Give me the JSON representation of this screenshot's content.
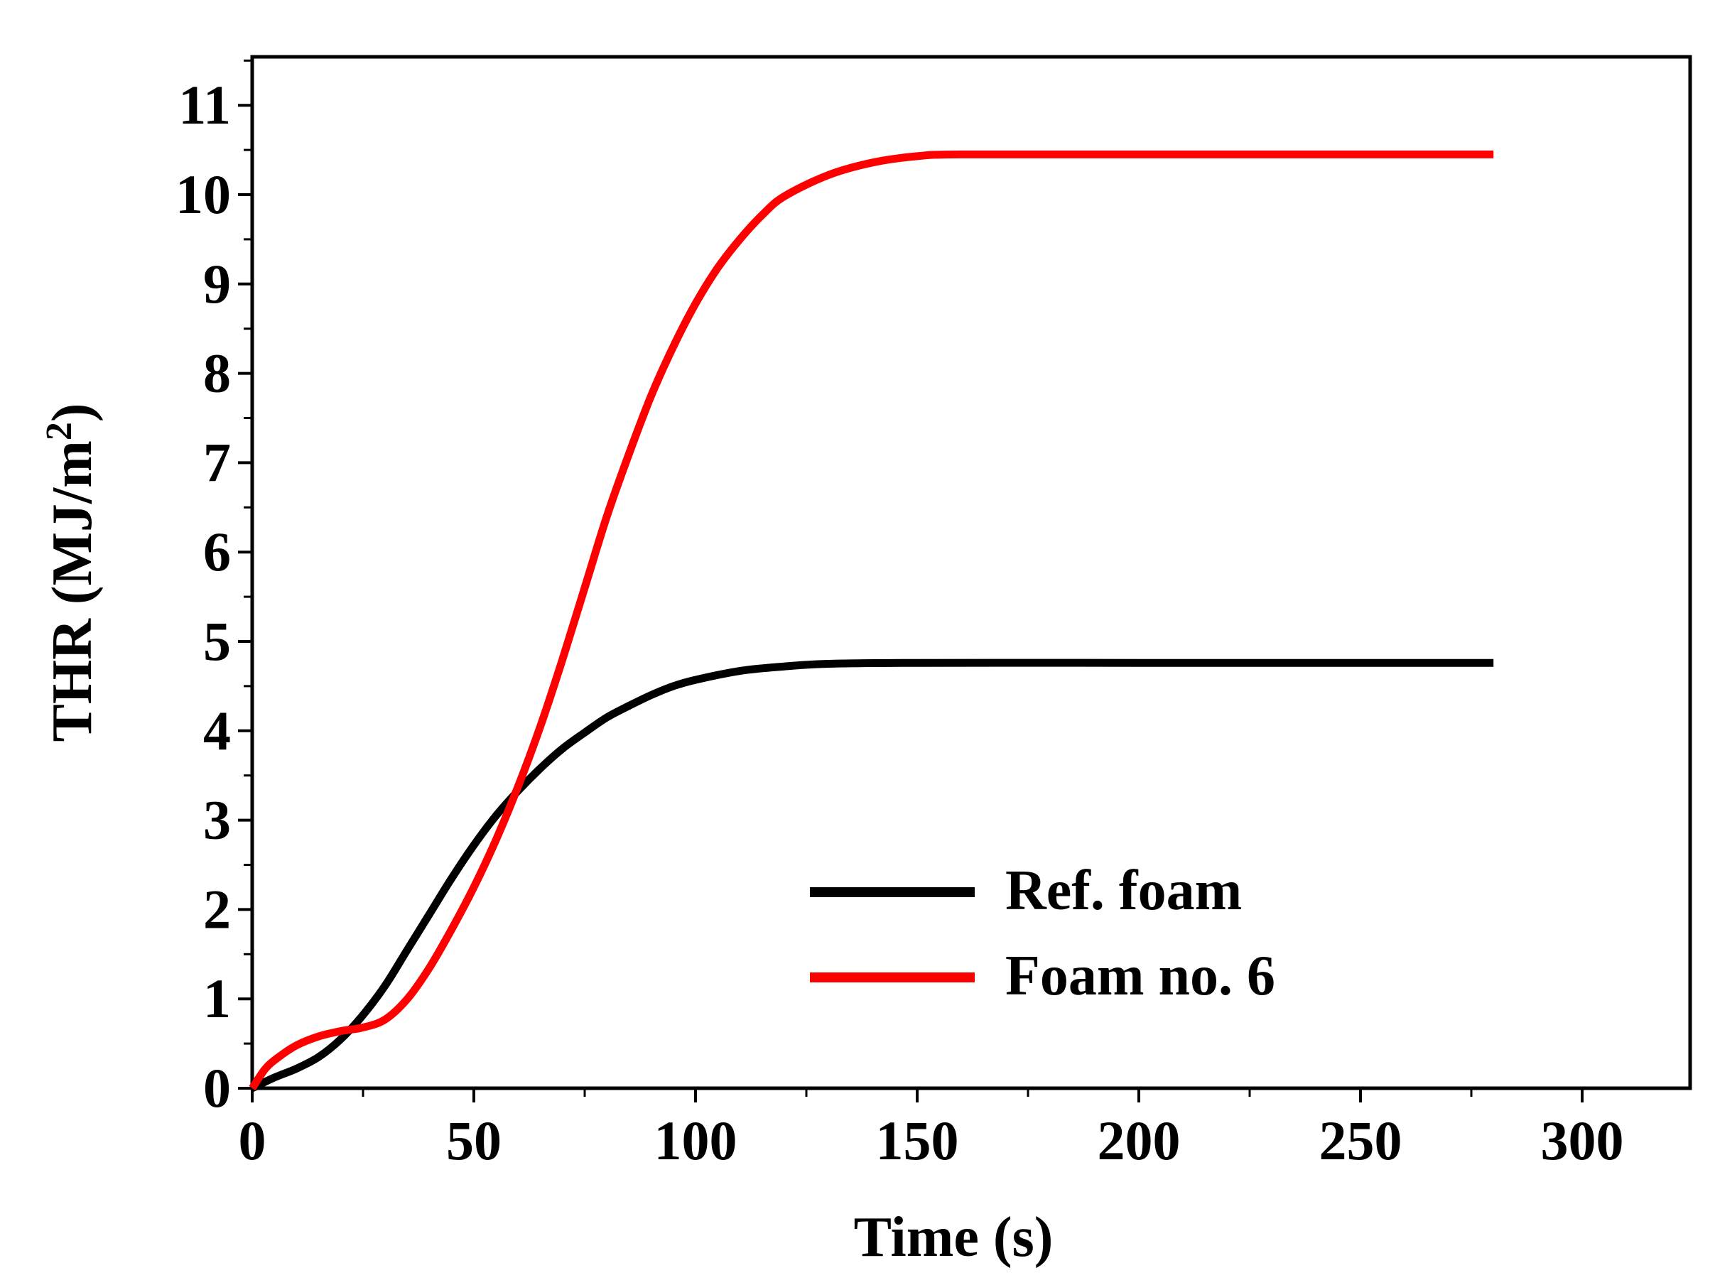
{
  "chart_data": {
    "type": "line",
    "title": "",
    "xlabel": "Time (s)",
    "ylabel_main": "THR (MJ/m",
    "ylabel_sup": "2",
    "ylabel_close": ")",
    "xlim": [
      0,
      325
    ],
    "ylim": [
      0,
      11.5
    ],
    "xticks": [
      0,
      50,
      100,
      150,
      200,
      250,
      300
    ],
    "xtick_labels": [
      "0",
      "50",
      "100",
      "150",
      "200",
      "250",
      "300"
    ],
    "yticks": [
      0,
      1,
      2,
      3,
      4,
      5,
      6,
      7,
      8,
      9,
      10,
      11
    ],
    "ytick_labels": [
      "0",
      "1",
      "2",
      "3",
      "4",
      "5",
      "6",
      "7",
      "8",
      "9",
      "10",
      "11"
    ],
    "grid": false,
    "legend_position": "bottom-right",
    "series": [
      {
        "name": "Ref. foam",
        "color": "#000000",
        "x": [
          0,
          5,
          10,
          15,
          20,
          25,
          30,
          35,
          40,
          45,
          50,
          55,
          60,
          65,
          70,
          75,
          80,
          85,
          90,
          95,
          100,
          110,
          120,
          130,
          150,
          200,
          250,
          280
        ],
        "y": [
          0,
          0.12,
          0.22,
          0.35,
          0.55,
          0.82,
          1.15,
          1.55,
          1.95,
          2.35,
          2.72,
          3.05,
          3.33,
          3.58,
          3.8,
          3.98,
          4.15,
          4.28,
          4.4,
          4.5,
          4.57,
          4.67,
          4.72,
          4.75,
          4.76,
          4.76,
          4.76,
          4.76
        ]
      },
      {
        "name": "Foam no. 6",
        "color": "#ff0000",
        "x": [
          0,
          3,
          6,
          10,
          15,
          20,
          25,
          30,
          35,
          40,
          45,
          50,
          55,
          60,
          65,
          70,
          75,
          80,
          85,
          90,
          95,
          100,
          105,
          110,
          115,
          120,
          130,
          140,
          150,
          160,
          200,
          250,
          280
        ],
        "y": [
          0,
          0.22,
          0.35,
          0.48,
          0.58,
          0.64,
          0.68,
          0.77,
          1.0,
          1.35,
          1.78,
          2.25,
          2.78,
          3.38,
          4.05,
          4.8,
          5.6,
          6.4,
          7.1,
          7.75,
          8.3,
          8.78,
          9.18,
          9.5,
          9.77,
          9.98,
          10.22,
          10.36,
          10.43,
          10.45,
          10.45,
          10.45,
          10.45
        ]
      }
    ]
  }
}
